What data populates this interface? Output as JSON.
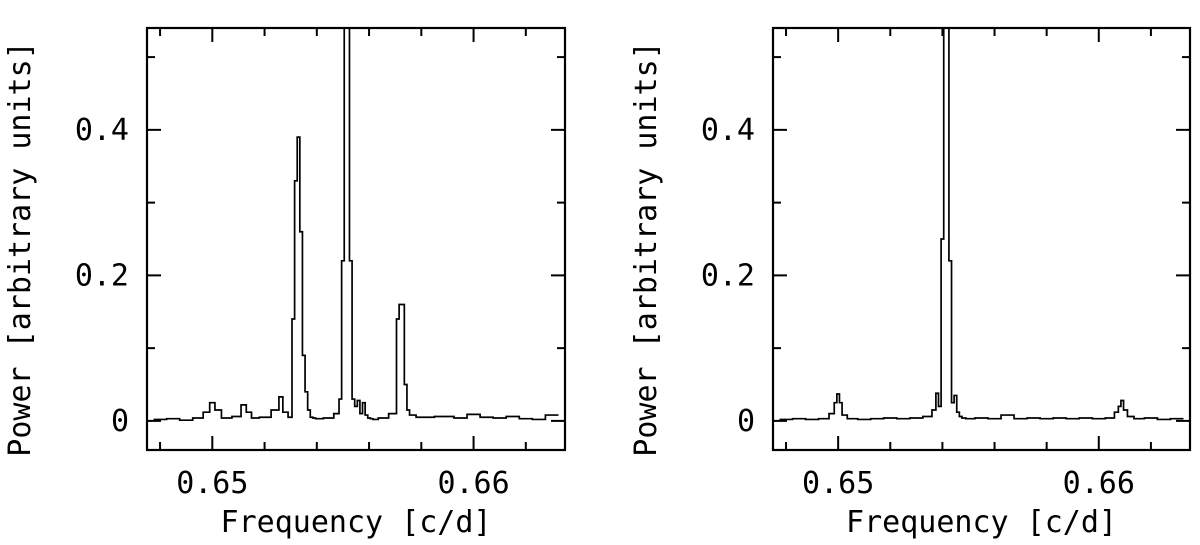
{
  "chart_data": [
    {
      "type": "line",
      "xlabel": "Frequency [c/d]",
      "ylabel": "Power [arbitrary units]",
      "xlim": [
        0.6475,
        0.6635
      ],
      "ylim": [
        -0.04,
        0.54
      ],
      "xticks_major": [
        0.65,
        0.66
      ],
      "xtick_labels": [
        "0.65",
        "0.66"
      ],
      "yticks_major": [
        0,
        0.2,
        0.4
      ],
      "ytick_labels": [
        "0",
        "0.2",
        "0.4"
      ],
      "series": [
        {
          "x": [
            0.648,
            0.6485,
            0.649,
            0.6495,
            0.6498,
            0.65,
            0.6502,
            0.6505,
            0.651,
            0.6512,
            0.6514,
            0.6516,
            0.652,
            0.6525,
            0.6526,
            0.6528,
            0.653,
            0.6531,
            0.6532,
            0.6533,
            0.6534,
            0.6535,
            0.6536,
            0.6537,
            0.6538,
            0.6539,
            0.654,
            0.6545,
            0.6548,
            0.6549,
            0.655,
            0.6551,
            0.6552,
            0.6553,
            0.6554,
            0.6555,
            0.6556,
            0.6557,
            0.6558,
            0.6559,
            0.656,
            0.6561,
            0.6562,
            0.6565,
            0.657,
            0.6571,
            0.6572,
            0.6573,
            0.6574,
            0.6575,
            0.6576,
            0.658,
            0.659,
            0.6595,
            0.66,
            0.6605,
            0.661,
            0.6615,
            0.662,
            0.6625,
            0.663
          ],
          "y": [
            0.002,
            0.003,
            0.001,
            0.004,
            0.012,
            0.025,
            0.015,
            0.004,
            0.006,
            0.022,
            0.012,
            0.004,
            0.005,
            0.015,
            0.033,
            0.012,
            0.005,
            0.14,
            0.33,
            0.39,
            0.26,
            0.09,
            0.04,
            0.015,
            0.005,
            0.004,
            0.003,
            0.004,
            0.01,
            0.03,
            0.22,
            0.54,
            0.54,
            0.22,
            0.03,
            0.02,
            0.028,
            0.01,
            0.025,
            0.008,
            0.004,
            0.003,
            0.002,
            0.004,
            0.01,
            0.14,
            0.16,
            0.16,
            0.05,
            0.015,
            0.008,
            0.005,
            0.006,
            0.004,
            0.009,
            0.005,
            0.004,
            0.006,
            0.003,
            0.002,
            0.008
          ]
        }
      ]
    },
    {
      "type": "line",
      "xlabel": "Frequency [c/d]",
      "ylabel": "Power [arbitrary units]",
      "xlim": [
        0.6475,
        0.6635
      ],
      "ylim": [
        -0.04,
        0.54
      ],
      "xticks_major": [
        0.65,
        0.66
      ],
      "xtick_labels": [
        "0.65",
        "0.66"
      ],
      "yticks_major": [
        0,
        0.2,
        0.4
      ],
      "ytick_labels": [
        "0",
        "0.2",
        "0.4"
      ],
      "series": [
        {
          "x": [
            0.648,
            0.6485,
            0.649,
            0.6495,
            0.6498,
            0.6499,
            0.65,
            0.6501,
            0.6502,
            0.6505,
            0.651,
            0.6515,
            0.652,
            0.6525,
            0.653,
            0.6535,
            0.6537,
            0.6538,
            0.6539,
            0.654,
            0.6541,
            0.6542,
            0.6543,
            0.6544,
            0.6545,
            0.6546,
            0.6547,
            0.6548,
            0.655,
            0.6555,
            0.656,
            0.6565,
            0.657,
            0.6575,
            0.658,
            0.6585,
            0.659,
            0.6595,
            0.66,
            0.6605,
            0.6607,
            0.6608,
            0.6609,
            0.661,
            0.6612,
            0.6615,
            0.662,
            0.6625,
            0.663
          ],
          "y": [
            0.002,
            0.003,
            0.002,
            0.003,
            0.01,
            0.025,
            0.037,
            0.025,
            0.008,
            0.003,
            0.002,
            0.003,
            0.004,
            0.003,
            0.004,
            0.006,
            0.015,
            0.038,
            0.02,
            0.25,
            0.54,
            0.54,
            0.22,
            0.025,
            0.035,
            0.012,
            0.006,
            0.004,
            0.003,
            0.004,
            0.003,
            0.008,
            0.003,
            0.004,
            0.003,
            0.004,
            0.003,
            0.004,
            0.003,
            0.004,
            0.012,
            0.02,
            0.028,
            0.015,
            0.006,
            0.003,
            0.004,
            0.002,
            0.003
          ]
        }
      ]
    }
  ]
}
